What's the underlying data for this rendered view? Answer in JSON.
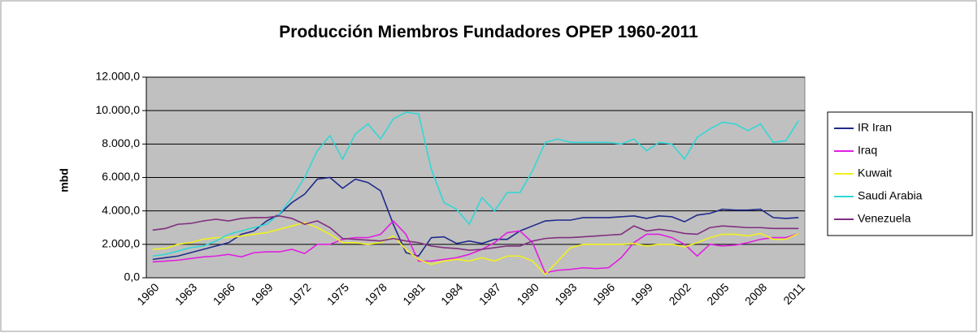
{
  "chart_data": {
    "type": "line",
    "title": "Producción Miembros Fundadores OPEP 1960-2011",
    "y_label": "mbd",
    "categories": [
      "1960",
      null,
      null,
      "1963",
      null,
      null,
      "1966",
      null,
      null,
      "1969",
      null,
      null,
      "1972",
      null,
      null,
      "1975",
      null,
      null,
      "1978",
      null,
      null,
      "1981",
      null,
      null,
      "1984",
      null,
      null,
      "1987",
      null,
      null,
      "1990",
      null,
      null,
      "1993",
      null,
      null,
      "1996",
      null,
      null,
      "1999",
      null,
      null,
      "2002",
      null,
      null,
      "2005",
      null,
      null,
      "2008",
      null,
      null,
      "2011"
    ],
    "ylim": [
      0,
      12000
    ],
    "yticks": [
      {
        "value": 0,
        "label": "0,0"
      },
      {
        "value": 2000,
        "label": "2.000,0"
      },
      {
        "value": 4000,
        "label": "4.000,0"
      },
      {
        "value": 6000,
        "label": "6.000,0"
      },
      {
        "value": 8000,
        "label": "8.000,0"
      },
      {
        "value": 10000,
        "label": "10.000,0"
      },
      {
        "value": 12000,
        "label": "12.000,0"
      }
    ],
    "grid": true,
    "legend": "right",
    "series": [
      {
        "name": "IR Iran",
        "color": "#1f2a8c",
        "values": [
          1100,
          1200,
          1300,
          1500,
          1700,
          1900,
          2100,
          2600,
          2800,
          3400,
          3800,
          4500,
          5000,
          5900,
          6000,
          5350,
          5900,
          5700,
          5200,
          3200,
          1500,
          1300,
          2400,
          2450,
          2050,
          2200,
          2050,
          2300,
          2300,
          2800,
          3100,
          3400,
          3450,
          3450,
          3600,
          3600,
          3600,
          3650,
          3700,
          3550,
          3700,
          3650,
          3350,
          3750,
          3850,
          4100,
          4050,
          4050,
          4100,
          3600,
          3550,
          3600
        ]
      },
      {
        "name": "Iraq",
        "color": "#e020e0",
        "values": [
          950,
          1000,
          1050,
          1150,
          1250,
          1300,
          1400,
          1250,
          1500,
          1550,
          1550,
          1700,
          1450,
          2000,
          2000,
          2300,
          2400,
          2400,
          2600,
          3400,
          2600,
          1000,
          1000,
          1100,
          1200,
          1400,
          1700,
          2100,
          2700,
          2800,
          2100,
          300,
          450,
          500,
          600,
          550,
          600,
          1200,
          2100,
          2600,
          2600,
          2400,
          2000,
          1300,
          2000,
          1900,
          1950,
          2100,
          2300,
          2400,
          2400,
          2650
        ]
      },
      {
        "name": "Kuwait",
        "color": "#f0f020",
        "values": [
          1700,
          1750,
          2000,
          2100,
          2300,
          2400,
          2400,
          2500,
          2600,
          2700,
          2900,
          3100,
          3300,
          3000,
          2600,
          2100,
          2100,
          2000,
          2100,
          2500,
          1700,
          1100,
          800,
          1000,
          1100,
          1000,
          1200,
          1000,
          1300,
          1300,
          1000,
          200,
          1000,
          1800,
          2000,
          2000,
          2000,
          2000,
          2050,
          1900,
          2000,
          2000,
          1850,
          2100,
          2400,
          2600,
          2600,
          2500,
          2650,
          2300,
          2300,
          2650
        ]
      },
      {
        "name": "Saudi Arabia",
        "color": "#33d6d6",
        "values": [
          1300,
          1400,
          1600,
          1800,
          1900,
          2200,
          2600,
          2800,
          3000,
          3200,
          3800,
          4800,
          6000,
          7600,
          8500,
          7100,
          8600,
          9200,
          8300,
          9500,
          9900,
          9800,
          6500,
          4500,
          4100,
          3200,
          4800,
          4000,
          5100,
          5100,
          6400,
          8100,
          8300,
          8100,
          8100,
          8100,
          8100,
          8000,
          8300,
          7600,
          8100,
          8000,
          7100,
          8400,
          8900,
          9300,
          9200,
          8800,
          9200,
          8100,
          8200,
          9400
        ]
      },
      {
        "name": "Venezuela",
        "color": "#80307f",
        "values": [
          2850,
          2950,
          3200,
          3250,
          3400,
          3500,
          3400,
          3550,
          3600,
          3600,
          3700,
          3550,
          3200,
          3400,
          3000,
          2350,
          2300,
          2250,
          2200,
          2350,
          2200,
          2100,
          1900,
          1800,
          1750,
          1650,
          1700,
          1800,
          1900,
          1900,
          2200,
          2350,
          2400,
          2400,
          2450,
          2500,
          2550,
          2600,
          3100,
          2800,
          2900,
          2800,
          2650,
          2600,
          3000,
          3100,
          3050,
          3000,
          3000,
          2950,
          2950,
          2950
        ]
      }
    ]
  }
}
